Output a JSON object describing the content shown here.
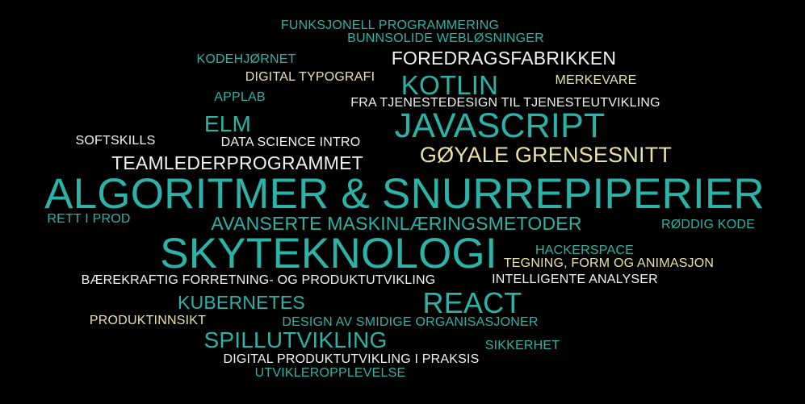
{
  "colors": {
    "background": "#000000",
    "teal": "#2bb3a8",
    "white": "#f2f2f2",
    "cream": "#ece2a4"
  },
  "words": {
    "funksjonell": "FUNKSJONELL PROGRAMMERING",
    "bunnsolide": "BUNNSOLIDE WEBLØSNINGER",
    "kodehjornet": "KODEHJØRNET",
    "foredragsfabrikken": "FOREDRAGSFABRIKKEN",
    "digital_typografi": "DIGITAL TYPOGRAFI",
    "kotlin": "KOTLIN",
    "merkevare": "MERKEVARE",
    "applab": "APPLAB",
    "tjenestedesign": "FRA TJENESTEDESIGN TIL TJENESTEUTVIKLING",
    "elm": "ELM",
    "javascript": "JAVASCRIPT",
    "softskills": "SOFTSKILLS",
    "data_science": "DATA SCIENCE INTRO",
    "goyale": "GØYALE GRENSESNITT",
    "teamleder": "TEAMLEDERPROGRAMMET",
    "algoritmer": "ALGORITMER & SNURREPIPERIER",
    "rett_i_prod": "RETT I PROD",
    "avanserte": "AVANSERTE MASKINLÆRINGSMETODER",
    "roddig": "RØDDIG KODE",
    "skyteknologi": "SKYTEKNOLOGI",
    "hackerspace": "HACKERSPACE",
    "tegning": "TEGNING, FORM OG ANIMASJON",
    "baerekraftig": "BÆREKRAFTIG FORRETNING- OG PRODUKTUTVIKLING",
    "intelligente": "INTELLIGENTE ANALYSER",
    "kubernetes": "KUBERNETES",
    "react": "REACT",
    "produktinnsikt": "PRODUKTINNSIKT",
    "design_smidige": "DESIGN AV SMIDIGE ORGANISASJONER",
    "spillutvikling": "SPILLUTVIKLING",
    "sikkerhet": "SIKKERHET",
    "digital_produkt": "DIGITAL PRODUKTUTVIKLING I PRAKSIS",
    "utvikleropplevelse": "UTVIKLEROPPLEVELSE"
  }
}
